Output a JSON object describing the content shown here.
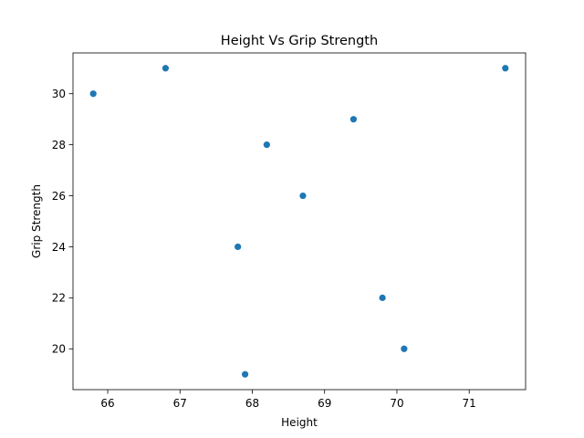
{
  "chart_data": {
    "type": "scatter",
    "title": "Height Vs Grip Strength",
    "xlabel": "Height",
    "ylabel": "Grip Strength",
    "xlim": [
      65.52,
      71.78
    ],
    "ylim": [
      18.4,
      31.6
    ],
    "xticks": [
      66,
      67,
      68,
      69,
      70,
      71
    ],
    "yticks": [
      20,
      22,
      24,
      26,
      28,
      30
    ],
    "grid": false,
    "legend": "none",
    "marker_color": "#1f77b4",
    "points": [
      {
        "x": 65.8,
        "y": 30
      },
      {
        "x": 66.8,
        "y": 31
      },
      {
        "x": 67.8,
        "y": 24
      },
      {
        "x": 67.9,
        "y": 19
      },
      {
        "x": 68.2,
        "y": 28
      },
      {
        "x": 68.7,
        "y": 26
      },
      {
        "x": 69.4,
        "y": 29
      },
      {
        "x": 69.8,
        "y": 22
      },
      {
        "x": 70.1,
        "y": 20
      },
      {
        "x": 71.5,
        "y": 31
      }
    ]
  }
}
